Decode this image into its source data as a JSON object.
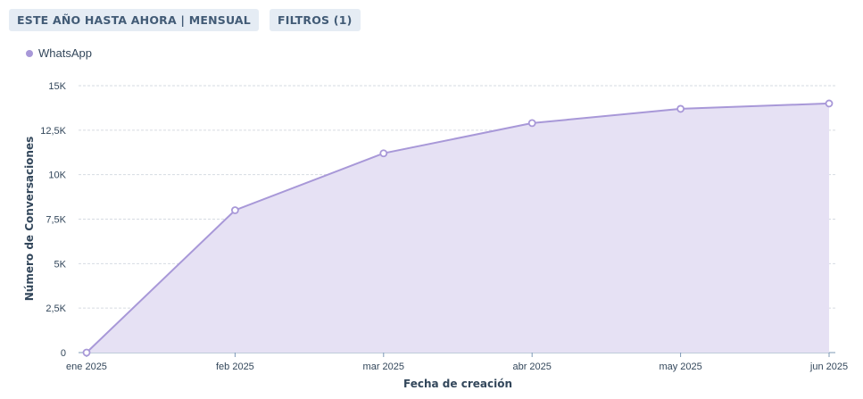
{
  "filters": {
    "date_range_label": "ESTE AÑO HASTA AHORA | MENSUAL",
    "filters_label": "FILTROS (1)"
  },
  "colors": {
    "series_line": "#a898d8",
    "series_fill": "#e6e1f4",
    "grid": "#d6dbe2",
    "axis": "#7c98b6"
  },
  "chart_data": {
    "type": "area",
    "categories": [
      "ene 2025",
      "feb 2025",
      "mar 2025",
      "abr 2025",
      "may 2025",
      "jun 2025"
    ],
    "series": [
      {
        "name": "WhatsApp",
        "values": [
          0,
          8000,
          11200,
          12900,
          13700,
          14000
        ]
      }
    ],
    "xlabel": "Fecha de creación",
    "ylabel": "Número de Conversaciones",
    "ylim": [
      0,
      15000
    ],
    "yticks": [
      0,
      2500,
      5000,
      7500,
      10000,
      12500,
      15000
    ],
    "ytick_labels": [
      "0",
      "2,5K",
      "5K",
      "7,5K",
      "10K",
      "12,5K",
      "15K"
    ],
    "grid": true,
    "legend": "top-left"
  }
}
